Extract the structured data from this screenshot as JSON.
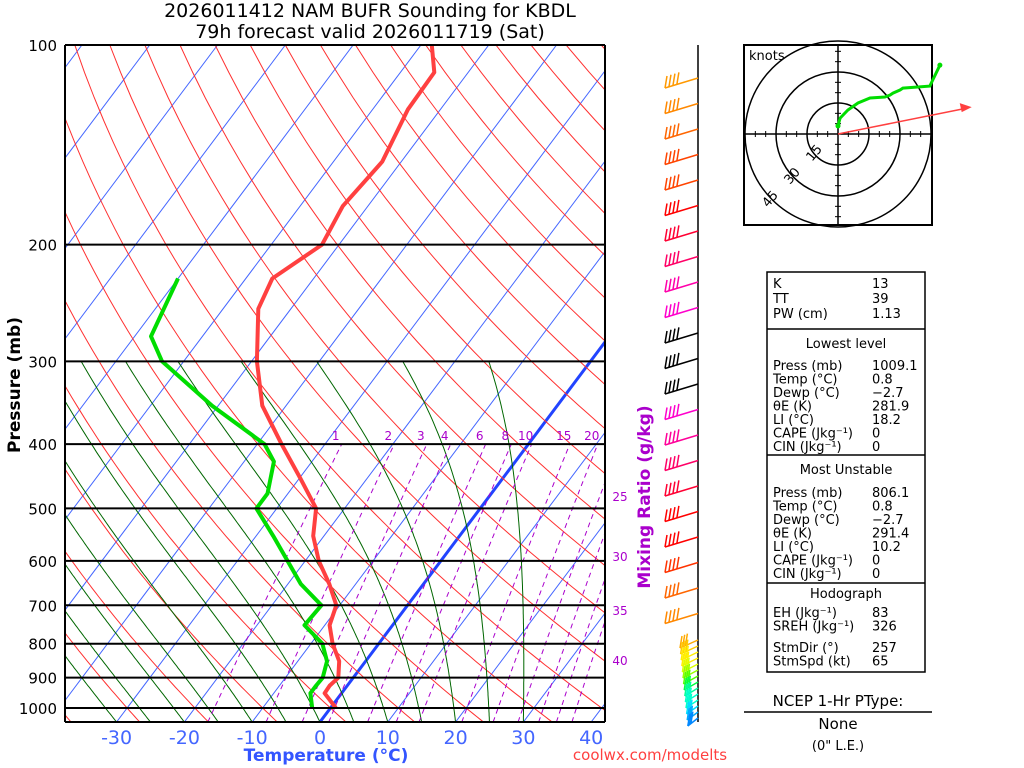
{
  "chart_data": {
    "type": "line",
    "subtype": "skew-t log-p sounding",
    "title": [
      "2026011412 NAM BUFR Sounding for KBDL",
      "79h forecast valid 2026011719 (Sat)"
    ],
    "xlabel": "Temperature (°C)",
    "ylabel": "Pressure (mb)",
    "right_label": "Mixing Ratio (g/kg)",
    "x_ticks": [
      -30,
      -20,
      -10,
      0,
      10,
      20,
      30,
      40
    ],
    "y_ticks": [
      100,
      200,
      300,
      400,
      500,
      600,
      700,
      800,
      900,
      1000
    ],
    "xlim": [
      -38,
      42
    ],
    "ylim": [
      1050,
      100
    ],
    "mixing_ratio_top_labels": [
      1,
      2,
      3,
      4,
      6,
      8,
      10,
      15,
      20
    ],
    "mixing_ratio_side_labels": [
      25,
      30,
      35,
      40
    ],
    "series": [
      {
        "name": "Temperature",
        "color": "#ff4040",
        "pressure": [
          1000,
          950,
          925,
          900,
          850,
          800,
          750,
          700,
          650,
          600,
          550,
          500,
          450,
          400,
          350,
          300,
          250,
          225,
          200,
          175,
          150,
          125,
          110,
          100
        ],
        "values": [
          0.8,
          -2.5,
          -2.6,
          -2.2,
          -3.9,
          -6.8,
          -9.3,
          -10.5,
          -13.9,
          -18,
          -21.6,
          -24.2,
          -29.9,
          -36.4,
          -43.5,
          -49.2,
          -54.8,
          -56.1,
          -52.5,
          -53.7,
          -52.8,
          -54.8,
          -55,
          -58.4
        ]
      },
      {
        "name": "Dewpoint",
        "color": "#00dd00",
        "pressure": [
          1000,
          950,
          925,
          900,
          850,
          800,
          750,
          700,
          650,
          550,
          500,
          475,
          425,
          400,
          350,
          300,
          275,
          225
        ],
        "values": [
          -2.7,
          -4.6,
          -4.6,
          -4.5,
          -5.7,
          -8.3,
          -13,
          -12.7,
          -18.1,
          -27.5,
          -33,
          -33,
          -35.6,
          -38.9,
          -50.9,
          -63.2,
          -67.6,
          -70
        ]
      }
    ],
    "freezing_isotherm": 0
  },
  "wind_barb_colors": [
    "#ff9900",
    "#ff8800",
    "#ff6600",
    "#ff4400",
    "#ff0000",
    "#ff0033",
    "#ff0066",
    "#ff00aa",
    "#ff00cc",
    "#000000",
    "#000000",
    "#ff00cc",
    "#ff0099",
    "#ff0066",
    "#ff0033",
    "#ff0000",
    "#ff3300",
    "#ff6600",
    "#ff8800",
    "#ffaa00",
    "#ffcc00",
    "#ffee00",
    "#ddff00",
    "#99ff00",
    "#55ff00",
    "#00ff44",
    "#00ff99",
    "#00ffcc",
    "#00ddff",
    "#00aaff",
    "#0088ff"
  ],
  "hodograph": {
    "label": "knots",
    "ring_labels": [
      "15",
      "30",
      "45"
    ],
    "wind_uv_kt": [
      [
        0,
        3.9
      ],
      [
        1,
        7.7
      ],
      [
        4.8,
        11.6
      ],
      [
        9.7,
        15
      ],
      [
        15.5,
        17.4
      ],
      [
        22.7,
        17.9
      ],
      [
        25.1,
        18.8
      ],
      [
        26.6,
        19.8
      ],
      [
        30,
        21.3
      ],
      [
        31.4,
        22.2
      ],
      [
        44.4,
        23.2
      ],
      [
        49.3,
        33.3
      ]
    ],
    "storm_motion_uv_kt": [
      64.7,
      13
    ]
  },
  "indices": {
    "top": [
      {
        "label": "K",
        "value": "13"
      },
      {
        "label": "TT",
        "value": "39"
      },
      {
        "label": "PW (cm)",
        "value": "1.13"
      }
    ],
    "lowest": {
      "title": "Lowest level",
      "rows": [
        {
          "label": "Press (mb)",
          "value": "1009.1"
        },
        {
          "label": "Temp (°C)",
          "value": "0.8"
        },
        {
          "label": "Dewp (°C)",
          "value": "−2.7"
        },
        {
          "label": "θE (K)",
          "value": "281.9"
        },
        {
          "label": "LI (°C)",
          "value": "18.2"
        },
        {
          "label": "CAPE (Jkg⁻¹)",
          "value": "0"
        },
        {
          "label": "CIN (Jkg⁻¹)",
          "value": "0"
        }
      ]
    },
    "unstable": {
      "title": "Most Unstable",
      "rows": [
        {
          "label": "Press (mb)",
          "value": "806.1"
        },
        {
          "label": "Temp (°C)",
          "value": "0.8"
        },
        {
          "label": "Dewp (°C)",
          "value": "−2.7"
        },
        {
          "label": "θE (K)",
          "value": "291.4"
        },
        {
          "label": "LI (°C)",
          "value": "10.2"
        },
        {
          "label": "CAPE (Jkg⁻¹)",
          "value": "0"
        },
        {
          "label": "CIN (Jkg⁻¹)",
          "value": "0"
        }
      ]
    },
    "hodo": {
      "title": "Hodograph",
      "rows": [
        {
          "label": "EH (Jkg⁻¹)",
          "value": "83"
        },
        {
          "label": "SREH (Jkg⁻¹)",
          "value": "326"
        },
        {
          "label": "StmDir (°)",
          "value": "257"
        },
        {
          "label": "StmSpd (kt)",
          "value": "65"
        }
      ]
    }
  },
  "ptype": {
    "title": "NCEP 1-Hr PType:",
    "value": "None",
    "amount": "(0\" L.E.)"
  },
  "credit": "coolwx.com/modelts"
}
